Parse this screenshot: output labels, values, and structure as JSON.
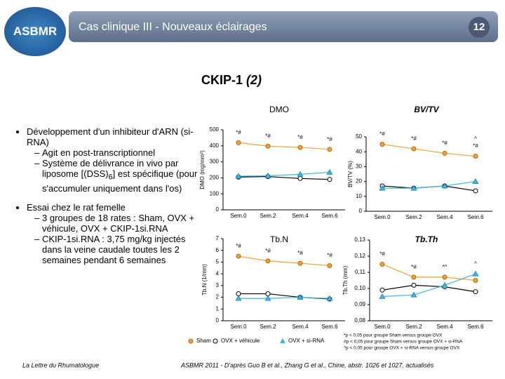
{
  "header": {
    "title": "Cas clinique III - Nouveaux éclairages",
    "page": "12",
    "logo": "ASBMR"
  },
  "heading": {
    "main": "CKIP-1",
    "sub": "(2)"
  },
  "bullets": [
    {
      "text": "Développement d'un inhibiteur d'ARN (si-RNA)",
      "items": [
        {
          "text": "Agit en post-transcriptionnel"
        },
        {
          "text": "Système de délivrance in vivo par liposome [(DSS)",
          "subscript": "6",
          "tail": "] est spécifique (pour s'accumuler uniquement dans l'os)"
        }
      ]
    },
    {
      "text": "Essai chez le rat femelle",
      "items": [
        {
          "text": "3 groupes de 18 rates : Sham, OVX + véhicule, OVX + CKIP-1si.RNA"
        },
        {
          "text": "CKIP-1si.RNA : 3,75 mg/kg injectés dans la veine caudale toutes les 2 semaines pendant 6 semaines"
        }
      ]
    }
  ],
  "chart_data": [
    {
      "type": "line",
      "title": "DMO",
      "y_label": "DMO (mg/mm²)",
      "categories": [
        "Sem.0",
        "Sem.2",
        "Sem.4",
        "Sem.6"
      ],
      "ylim": [
        0,
        500
      ],
      "yticks": [
        0,
        100,
        200,
        300,
        400,
        500
      ],
      "series": [
        {
          "name": "Sham",
          "color": "#eea236",
          "marker": "filled-circle",
          "values": [
            420,
            398,
            390,
            378
          ]
        },
        {
          "name": "OVX + véhicule",
          "color": "#000000",
          "marker": "open-circle",
          "values": [
            205,
            208,
            196,
            190
          ]
        },
        {
          "name": "OVX + si-RNA",
          "color": "#3cb4dc",
          "marker": "triangle",
          "values": [
            210,
            213,
            222,
            235
          ]
        }
      ],
      "annotations": [
        {
          "text": "*#",
          "category": "Sem.0"
        },
        {
          "text": "*#",
          "category": "Sem.2"
        },
        {
          "text": "*#",
          "category": "Sem.4"
        },
        {
          "text": "*#",
          "category": "Sem.6"
        }
      ]
    },
    {
      "type": "line",
      "title": "BV/TV",
      "y_label": "BV/TV (%)",
      "categories": [
        "Sem.0",
        "Sem.2",
        "Sem.4",
        "Sem.6"
      ],
      "ylim": [
        0,
        50
      ],
      "yticks": [
        0,
        10,
        20,
        30,
        40,
        50
      ],
      "series": [
        {
          "color": "#eea236",
          "marker": "filled-circle",
          "values": [
            45,
            42,
            39,
            37
          ]
        },
        {
          "color": "#000000",
          "marker": "open-circle",
          "values": [
            17,
            15.5,
            17,
            13.7
          ]
        },
        {
          "color": "#3cb4dc",
          "marker": "triangle",
          "values": [
            15.5,
            15.5,
            17,
            20
          ]
        }
      ],
      "annotations": [
        {
          "text": "*#",
          "category": "Sem.0"
        },
        {
          "text": "*#",
          "category": "Sem.2"
        },
        {
          "text": "*#",
          "category": "Sem.4"
        },
        {
          "text": "*#",
          "category": "Sem.6"
        },
        {
          "text": "^",
          "category": "Sem.6"
        }
      ]
    },
    {
      "type": "line",
      "title": "Tb.N",
      "y_label": "Tb.N (1/mm)",
      "categories": [
        "Sem.0",
        "Sem.2",
        "Sem.4",
        "Sem.6"
      ],
      "ylim": [
        0,
        7
      ],
      "yticks": [
        0,
        1,
        2,
        3,
        4,
        5,
        6,
        7
      ],
      "series": [
        {
          "color": "#eea236",
          "marker": "filled-circle",
          "values": [
            5.5,
            5.1,
            4.9,
            4.7
          ]
        },
        {
          "color": "#000000",
          "marker": "open-circle",
          "values": [
            2.3,
            2.3,
            2.0,
            1.85
          ]
        },
        {
          "color": "#3cb4dc",
          "marker": "triangle",
          "values": [
            1.9,
            1.9,
            2.0,
            1.9
          ]
        }
      ],
      "annotations": [
        {
          "text": "*#",
          "category": "Sem.0"
        },
        {
          "text": "*#",
          "category": "Sem.2"
        },
        {
          "text": "*#",
          "category": "Sem.4"
        },
        {
          "text": "*#",
          "category": "Sem.6"
        }
      ]
    },
    {
      "type": "line",
      "title": "Tb.Th",
      "y_label": "Tb.Th (mm)",
      "categories": [
        "Sem.0",
        "Sem.2",
        "Sem.4",
        "Sem.6"
      ],
      "ylim": [
        0.08,
        0.13
      ],
      "yticks": [
        {
          "value": 0.08,
          "label": "0,08"
        },
        {
          "value": 0.09,
          "label": "0,09"
        },
        {
          "value": 0.1,
          "label": "0,10"
        },
        {
          "value": 0.11,
          "label": "0,11"
        },
        {
          "value": 0.12,
          "label": "0,12"
        },
        {
          "value": 0.13,
          "label": "0,13"
        }
      ],
      "series": [
        {
          "color": "#eea236",
          "marker": "filled-circle",
          "values": [
            0.115,
            0.107,
            0.107,
            0.105
          ]
        },
        {
          "color": "#000000",
          "marker": "open-circle",
          "values": [
            0.099,
            0.102,
            0.101,
            0.098
          ]
        },
        {
          "color": "#3cb4dc",
          "marker": "triangle",
          "values": [
            0.095,
            0.096,
            0.102,
            0.109
          ]
        }
      ],
      "annotations": [
        {
          "text": "*#",
          "category": "Sem.0"
        },
        {
          "text": "*#",
          "category": "Sem.2"
        },
        {
          "text": "*^",
          "category": "Sem.4"
        },
        {
          "text": "^",
          "category": "Sem.6"
        }
      ]
    }
  ],
  "footnotes": [
    "*p < 0,05 pour groupe Sham versus groupe OVX",
    "#p < 0,05 pour groupe Sham versus groupe OVX + si-RNA",
    "^p < 0,05 pour groupe OVX + si-RNA versus groupe OVX"
  ],
  "footer": {
    "left": "La Lettre du Rhumatologue",
    "right": "ASBMR 2011 - D'après Guo B et al., Zhang G et al., Chine, abstr. 1026 et 1027, actualisés"
  }
}
